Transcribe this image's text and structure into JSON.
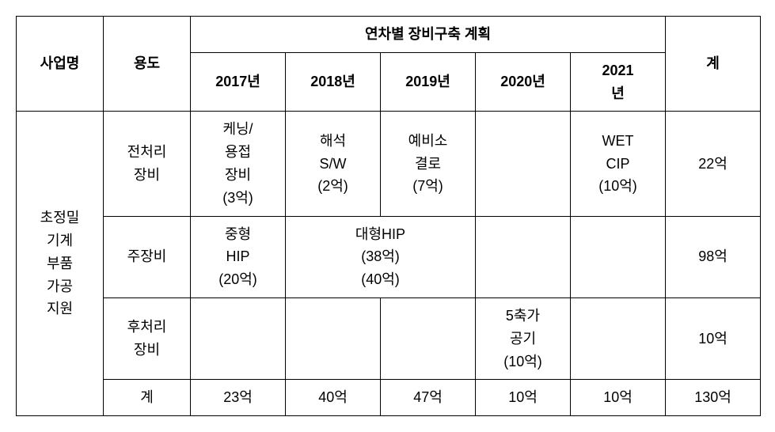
{
  "table": {
    "headers": {
      "project_name": "사업명",
      "usage": "용도",
      "annual_plan": "연차별 장비구축 계획",
      "y2017": "2017년",
      "y2018": "2018년",
      "y2019": "2019년",
      "y2020": "2020년",
      "y2021": "2021\n년",
      "total": "계"
    },
    "project": "초정밀\n기계\n부품\n가공\n지원",
    "rows": {
      "pre": {
        "usage": "전처리\n장비",
        "y2017": "케닝/\n용접\n장비\n(3억)",
        "y2018": "해석\nS/W\n(2억)",
        "y2019": "예비소\n결로\n(7억)",
        "y2020": "",
        "y2021": "WET\nCIP\n(10억)",
        "total": "22억"
      },
      "main": {
        "usage": "주장비",
        "y2017": "중형\nHIP\n(20억)",
        "y2018_2019": "대형HIP\n(38억)\n(40억)",
        "y2020": "",
        "y2021": "",
        "total": "98억"
      },
      "post": {
        "usage": "후처리\n장비",
        "y2017": "",
        "y2018": "",
        "y2019": "",
        "y2020": "5축가\n공기\n(10억)",
        "y2021": "",
        "total": "10억"
      },
      "sum": {
        "usage": "계",
        "y2017": "23억",
        "y2018": "40억",
        "y2019": "47억",
        "y2020": "10억",
        "y2021": "10억",
        "total": "130억"
      }
    },
    "styles": {
      "border_color": "#000000",
      "background_color": "#ffffff",
      "font_size": 18,
      "font_family": "Malgun Gothic"
    }
  }
}
